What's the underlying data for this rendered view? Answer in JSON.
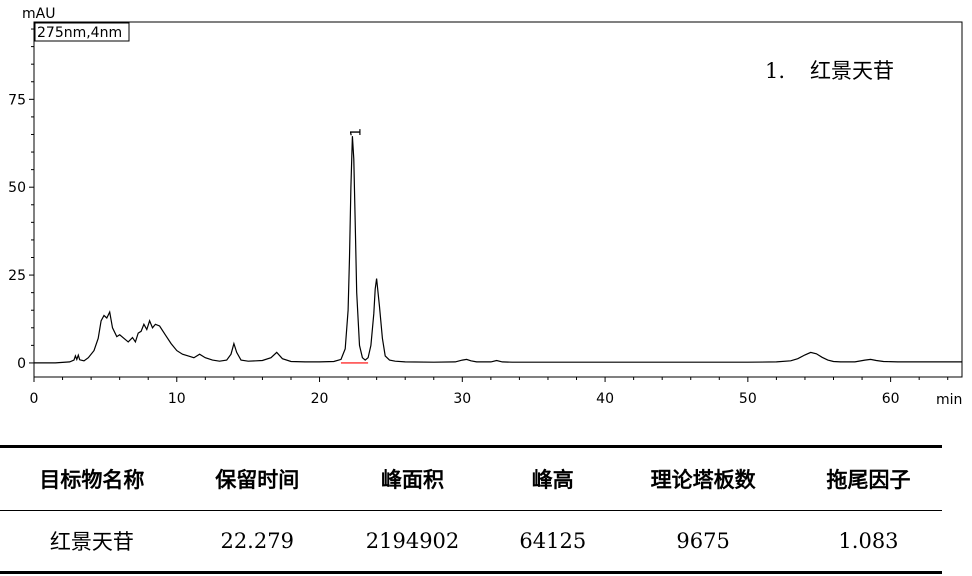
{
  "chart_data": {
    "type": "line",
    "ylabel": "mAU",
    "xlabel": "min",
    "channel_label": "275nm,4nm",
    "xlim": [
      0,
      65
    ],
    "ylim": [
      -4,
      97
    ],
    "x_ticks": [
      0,
      10,
      20,
      30,
      40,
      50,
      60
    ],
    "y_ticks": [
      0,
      25,
      50,
      75
    ],
    "grid": false,
    "legend": {
      "position": "top-right",
      "number": "1.",
      "name": "红景天苷"
    },
    "annotations": [
      {
        "label": "1",
        "x": 22.3,
        "y": 64.5
      }
    ],
    "peak_marker_color": "#ff0000",
    "line_color": "#000000",
    "series": [
      {
        "x": [
          0,
          1.5,
          2.5,
          2.8,
          2.9,
          3.0,
          3.1,
          3.2,
          3.5,
          3.8,
          4.2,
          4.5,
          4.7,
          4.9,
          5.1,
          5.3,
          5.5,
          5.8,
          6.0,
          6.3,
          6.6,
          6.9,
          7.1,
          7.3,
          7.5,
          7.7,
          7.9,
          8.1,
          8.3,
          8.5,
          8.8,
          9.2,
          9.6,
          10.0,
          10.4,
          10.8,
          11.2,
          11.6,
          12.0,
          12.5,
          13.0,
          13.5,
          13.8,
          14.0,
          14.2,
          14.5,
          15.0,
          16.0,
          16.6,
          17.0,
          17.4,
          18.0,
          19.0,
          20.0,
          21.0,
          21.5,
          21.8,
          22.0,
          22.1,
          22.2,
          22.3,
          22.4,
          22.5,
          22.6,
          22.8,
          23.0,
          23.2,
          23.4,
          23.6,
          23.8,
          23.9,
          24.0,
          24.2,
          24.4,
          24.6,
          24.9,
          25.3,
          26.0,
          28.0,
          29.5,
          30.0,
          30.3,
          30.6,
          31.0,
          32.0,
          32.4,
          32.8,
          33.5,
          40.0,
          50.0,
          52.0,
          53.0,
          53.5,
          54.0,
          54.4,
          54.8,
          55.2,
          55.6,
          56.0,
          56.5,
          57.5,
          58.2,
          58.6,
          59.0,
          59.5,
          60.5,
          62.0,
          64.0,
          65.0
        ],
        "y": [
          0,
          0,
          0.3,
          0.8,
          2.0,
          1.0,
          2.2,
          0.9,
          0.6,
          1.5,
          3.5,
          7.0,
          12.0,
          13.5,
          12.8,
          14.5,
          10.0,
          7.5,
          8.0,
          7.0,
          6.0,
          7.2,
          6.0,
          8.5,
          9.0,
          11.0,
          9.5,
          12.0,
          10.0,
          11.0,
          10.5,
          8.0,
          5.5,
          3.5,
          2.5,
          2.0,
          1.5,
          2.5,
          1.5,
          0.8,
          0.5,
          0.8,
          2.5,
          5.5,
          3.0,
          0.8,
          0.5,
          0.7,
          1.5,
          3.0,
          1.2,
          0.4,
          0.3,
          0.3,
          0.4,
          1.0,
          4.0,
          15.0,
          30.0,
          50.0,
          64.5,
          58.0,
          40.0,
          20.0,
          5.0,
          1.5,
          0.8,
          1.5,
          5.0,
          14.0,
          21.0,
          24.0,
          16.0,
          7.0,
          2.0,
          0.8,
          0.5,
          0.3,
          0.2,
          0.3,
          0.8,
          1.0,
          0.6,
          0.3,
          0.3,
          0.7,
          0.3,
          0.2,
          0.2,
          0.2,
          0.3,
          0.6,
          1.2,
          2.3,
          3.0,
          2.6,
          1.6,
          0.8,
          0.4,
          0.3,
          0.3,
          0.8,
          1.0,
          0.7,
          0.4,
          0.3,
          0.3,
          0.3,
          0.3
        ]
      }
    ]
  },
  "results_table": {
    "headers": [
      "目标物名称",
      "保留时间",
      "峰面积",
      "峰高",
      "理论塔板数",
      "拖尾因子"
    ],
    "row": [
      "红景天苷",
      "22.279",
      "2194902",
      "64125",
      "9675",
      "1.083"
    ]
  }
}
